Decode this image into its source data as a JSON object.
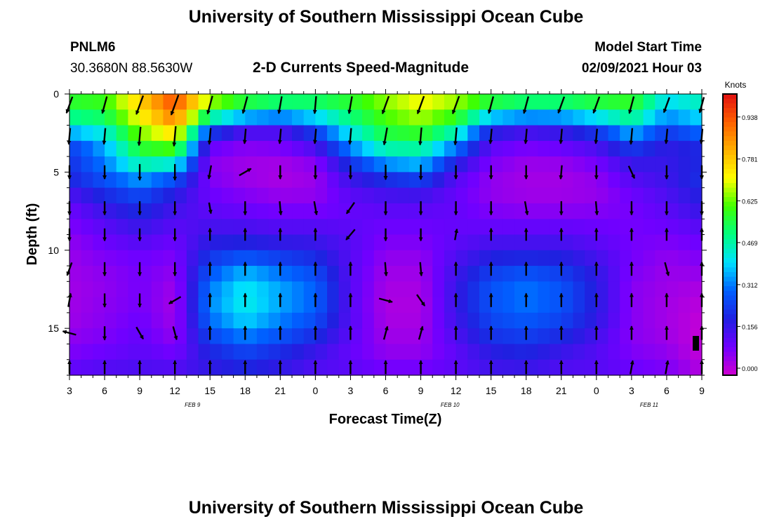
{
  "header": {
    "title": "University of Southern Mississippi Ocean Cube",
    "station_id": "PNLM6",
    "station_coords": "30.3680N 88.5630W",
    "plot_title": "2-D Currents Speed-Magnitude",
    "model_start_label": "Model Start Time",
    "model_start_value": "02/09/2021 Hour 03"
  },
  "footer": {
    "title": "University of Southern Mississippi Ocean Cube"
  },
  "chart_data": {
    "type": "heatmap",
    "title": "2-D Currents Speed-Magnitude",
    "xlabel": "Forecast Time(Z)",
    "ylabel": "Depth (ft)",
    "colorbar_label": "Knots",
    "colorbar_ticks": [
      "0.938",
      "0.781",
      "0.625",
      "0.469",
      "0.312",
      "0.156",
      "0.000"
    ],
    "colorbar_values": [
      0.938,
      0.781,
      0.625,
      0.469,
      0.312,
      0.156,
      0.0
    ],
    "color_range": [
      0,
      1.05
    ],
    "colors": {
      "scale": [
        "#d000d0",
        "#7000ff",
        "#2020e0",
        "#0060ff",
        "#00e0ff",
        "#00ff80",
        "#40ff00",
        "#ffff00",
        "#ffb000",
        "#ff6000",
        "#e01010"
      ]
    },
    "xlim": [
      0,
      54
    ],
    "x_tick_labels": [
      "3",
      "6",
      "9",
      "12",
      "15",
      "18",
      "21",
      "0",
      "3",
      "6",
      "9",
      "12",
      "15",
      "18",
      "21",
      "0",
      "3",
      "6",
      "9"
    ],
    "date_labels": [
      {
        "label": "FEB 9",
        "hour": 10.5
      },
      {
        "label": "FEB 10",
        "hour": 32.5
      },
      {
        "label": "FEB 11",
        "hour": 49.5
      }
    ],
    "ylim": [
      0,
      18
    ],
    "y_tick_labels": [
      "0",
      "5",
      "10",
      "15"
    ],
    "y_ticks": [
      0,
      5,
      10,
      15
    ],
    "depths_ft": [
      0,
      1,
      2,
      3,
      4,
      5,
      6,
      7,
      8,
      9,
      10,
      11,
      12,
      13,
      14,
      15,
      16,
      17,
      18
    ],
    "hour_columns": [
      0,
      3,
      6,
      9,
      12,
      15,
      18,
      21,
      24,
      27,
      30,
      33,
      36,
      39,
      42,
      45,
      48,
      51,
      54
    ],
    "speed_knots": [
      [
        0.6,
        0.62,
        0.8,
        0.98,
        0.7,
        0.6,
        0.58,
        0.57,
        0.6,
        0.68,
        0.75,
        0.7,
        0.6,
        0.58,
        0.58,
        0.6,
        0.62,
        0.45,
        0.5
      ],
      [
        0.58,
        0.6,
        0.78,
        0.95,
        0.65,
        0.55,
        0.5,
        0.52,
        0.58,
        0.66,
        0.72,
        0.66,
        0.55,
        0.5,
        0.5,
        0.55,
        0.58,
        0.4,
        0.45
      ],
      [
        0.45,
        0.5,
        0.7,
        0.85,
        0.35,
        0.2,
        0.18,
        0.3,
        0.48,
        0.6,
        0.65,
        0.55,
        0.25,
        0.2,
        0.22,
        0.3,
        0.45,
        0.3,
        0.38
      ],
      [
        0.3,
        0.4,
        0.62,
        0.7,
        0.15,
        0.1,
        0.12,
        0.2,
        0.4,
        0.55,
        0.55,
        0.4,
        0.15,
        0.12,
        0.14,
        0.18,
        0.3,
        0.2,
        0.25
      ],
      [
        0.22,
        0.35,
        0.55,
        0.55,
        0.08,
        0.06,
        0.06,
        0.1,
        0.28,
        0.42,
        0.45,
        0.25,
        0.1,
        0.07,
        0.08,
        0.12,
        0.2,
        0.18,
        0.2
      ],
      [
        0.25,
        0.32,
        0.42,
        0.35,
        0.08,
        0.05,
        0.04,
        0.06,
        0.2,
        0.28,
        0.32,
        0.16,
        0.08,
        0.05,
        0.05,
        0.08,
        0.16,
        0.18,
        0.25
      ],
      [
        0.18,
        0.25,
        0.3,
        0.22,
        0.1,
        0.07,
        0.05,
        0.06,
        0.15,
        0.18,
        0.2,
        0.12,
        0.06,
        0.05,
        0.05,
        0.06,
        0.12,
        0.16,
        0.22
      ],
      [
        0.12,
        0.2,
        0.25,
        0.18,
        0.12,
        0.1,
        0.08,
        0.08,
        0.12,
        0.14,
        0.14,
        0.12,
        0.08,
        0.06,
        0.06,
        0.07,
        0.1,
        0.14,
        0.2
      ],
      [
        0.1,
        0.15,
        0.2,
        0.15,
        0.14,
        0.13,
        0.12,
        0.12,
        0.12,
        0.12,
        0.12,
        0.12,
        0.1,
        0.1,
        0.1,
        0.1,
        0.1,
        0.12,
        0.16
      ],
      [
        0.08,
        0.12,
        0.16,
        0.12,
        0.18,
        0.18,
        0.16,
        0.16,
        0.14,
        0.1,
        0.1,
        0.12,
        0.14,
        0.14,
        0.14,
        0.12,
        0.1,
        0.1,
        0.12
      ],
      [
        0.06,
        0.1,
        0.12,
        0.1,
        0.22,
        0.24,
        0.22,
        0.2,
        0.14,
        0.08,
        0.08,
        0.14,
        0.18,
        0.18,
        0.18,
        0.15,
        0.1,
        0.08,
        0.1
      ],
      [
        0.06,
        0.08,
        0.1,
        0.08,
        0.28,
        0.35,
        0.3,
        0.26,
        0.14,
        0.06,
        0.06,
        0.16,
        0.24,
        0.26,
        0.24,
        0.18,
        0.1,
        0.06,
        0.08
      ],
      [
        0.05,
        0.07,
        0.1,
        0.06,
        0.32,
        0.42,
        0.36,
        0.3,
        0.14,
        0.05,
        0.05,
        0.18,
        0.28,
        0.32,
        0.28,
        0.2,
        0.08,
        0.06,
        0.05
      ],
      [
        0.05,
        0.07,
        0.1,
        0.05,
        0.35,
        0.45,
        0.38,
        0.32,
        0.14,
        0.04,
        0.04,
        0.18,
        0.3,
        0.34,
        0.3,
        0.2,
        0.08,
        0.05,
        0.03
      ],
      [
        0.05,
        0.08,
        0.1,
        0.05,
        0.34,
        0.44,
        0.36,
        0.3,
        0.14,
        0.04,
        0.04,
        0.18,
        0.28,
        0.32,
        0.28,
        0.2,
        0.08,
        0.05,
        0.02
      ],
      [
        0.06,
        0.08,
        0.12,
        0.06,
        0.3,
        0.38,
        0.32,
        0.26,
        0.14,
        0.05,
        0.05,
        0.16,
        0.26,
        0.28,
        0.25,
        0.18,
        0.08,
        0.05,
        0.01
      ],
      [
        0.08,
        0.1,
        0.12,
        0.08,
        0.24,
        0.3,
        0.26,
        0.2,
        0.12,
        0.06,
        0.06,
        0.14,
        0.22,
        0.24,
        0.2,
        0.15,
        0.08,
        0.06,
        0.01
      ],
      [
        0.1,
        0.12,
        0.14,
        0.12,
        0.2,
        0.24,
        0.2,
        0.16,
        0.12,
        0.08,
        0.08,
        0.12,
        0.18,
        0.2,
        0.16,
        0.14,
        0.1,
        0.08,
        0.02
      ],
      [
        0.14,
        0.16,
        0.16,
        0.16,
        0.18,
        0.2,
        0.18,
        0.14,
        0.14,
        0.12,
        0.12,
        0.14,
        0.16,
        0.16,
        0.14,
        0.14,
        0.12,
        0.1,
        0.04
      ]
    ],
    "vector_depths_ft": [
      0.7,
      2.7,
      5.0,
      7.3,
      9.0,
      11.2,
      13.2,
      15.3,
      17.5
    ],
    "vector_direction_deg": [
      [
        200,
        195,
        200,
        200,
        195,
        195,
        190,
        185,
        190,
        200,
        200,
        200,
        195,
        195,
        200,
        200,
        195,
        200,
        195
      ],
      [
        185,
        185,
        185,
        185,
        185,
        185,
        185,
        185,
        185,
        190,
        185,
        185,
        185,
        185,
        185,
        185,
        185,
        185,
        185
      ],
      [
        180,
        180,
        180,
        180,
        190,
        60,
        180,
        180,
        180,
        180,
        180,
        180,
        180,
        180,
        185,
        180,
        155,
        180,
        180
      ],
      [
        180,
        180,
        180,
        180,
        170,
        180,
        175,
        170,
        215,
        180,
        180,
        180,
        180,
        170,
        180,
        175,
        180,
        180,
        180
      ],
      [
        180,
        180,
        180,
        180,
        0,
        0,
        0,
        0,
        220,
        180,
        180,
        10,
        0,
        0,
        0,
        0,
        0,
        0,
        0
      ],
      [
        200,
        180,
        180,
        180,
        0,
        0,
        0,
        0,
        0,
        175,
        175,
        0,
        0,
        0,
        0,
        0,
        0,
        165,
        0
      ],
      [
        10,
        180,
        180,
        240,
        0,
        0,
        0,
        0,
        0,
        105,
        145,
        0,
        0,
        0,
        0,
        0,
        0,
        0,
        0
      ],
      [
        285,
        180,
        150,
        165,
        0,
        0,
        0,
        0,
        0,
        15,
        15,
        0,
        0,
        0,
        0,
        0,
        0,
        0,
        0
      ],
      [
        0,
        0,
        0,
        0,
        0,
        0,
        0,
        0,
        0,
        0,
        0,
        0,
        0,
        0,
        0,
        0,
        10,
        10,
        0
      ]
    ],
    "vector_speed_knots": [
      [
        0.6,
        0.6,
        0.8,
        0.9,
        0.7,
        0.6,
        0.6,
        0.6,
        0.6,
        0.7,
        0.7,
        0.7,
        0.6,
        0.6,
        0.6,
        0.6,
        0.6,
        0.5,
        0.5
      ],
      [
        0.5,
        0.5,
        0.7,
        0.8,
        0.5,
        0.4,
        0.4,
        0.4,
        0.5,
        0.6,
        0.6,
        0.6,
        0.4,
        0.4,
        0.4,
        0.4,
        0.5,
        0.4,
        0.4
      ],
      [
        0.3,
        0.3,
        0.5,
        0.5,
        0.3,
        0.3,
        0.3,
        0.3,
        0.3,
        0.4,
        0.4,
        0.3,
        0.3,
        0.3,
        0.3,
        0.3,
        0.3,
        0.3,
        0.3
      ],
      [
        0.3,
        0.3,
        0.3,
        0.3,
        0.1,
        0.3,
        0.3,
        0.3,
        0.3,
        0.3,
        0.3,
        0.3,
        0.3,
        0.3,
        0.3,
        0.3,
        0.3,
        0.3,
        0.3
      ],
      [
        0.2,
        0.2,
        0.2,
        0.2,
        0.2,
        0.2,
        0.2,
        0.2,
        0.3,
        0.2,
        0.2,
        0.1,
        0.2,
        0.2,
        0.2,
        0.2,
        0.2,
        0.2,
        0.2
      ],
      [
        0.3,
        0.3,
        0.3,
        0.3,
        0.3,
        0.3,
        0.3,
        0.3,
        0.3,
        0.3,
        0.3,
        0.3,
        0.3,
        0.3,
        0.3,
        0.3,
        0.3,
        0.3,
        0.3
      ],
      [
        0.3,
        0.3,
        0.3,
        0.3,
        0.3,
        0.3,
        0.3,
        0.3,
        0.3,
        0.3,
        0.3,
        0.3,
        0.3,
        0.3,
        0.3,
        0.3,
        0.3,
        0.3,
        0.3
      ],
      [
        0.3,
        0.3,
        0.3,
        0.3,
        0.3,
        0.3,
        0.3,
        0.3,
        0.3,
        0.3,
        0.3,
        0.3,
        0.3,
        0.3,
        0.3,
        0.3,
        0.3,
        0.3,
        0.3
      ],
      [
        0.3,
        0.3,
        0.3,
        0.3,
        0.3,
        0.3,
        0.3,
        0.3,
        0.3,
        0.3,
        0.3,
        0.3,
        0.3,
        0.3,
        0.3,
        0.3,
        0.3,
        0.3,
        0.3
      ]
    ],
    "grid": false
  }
}
